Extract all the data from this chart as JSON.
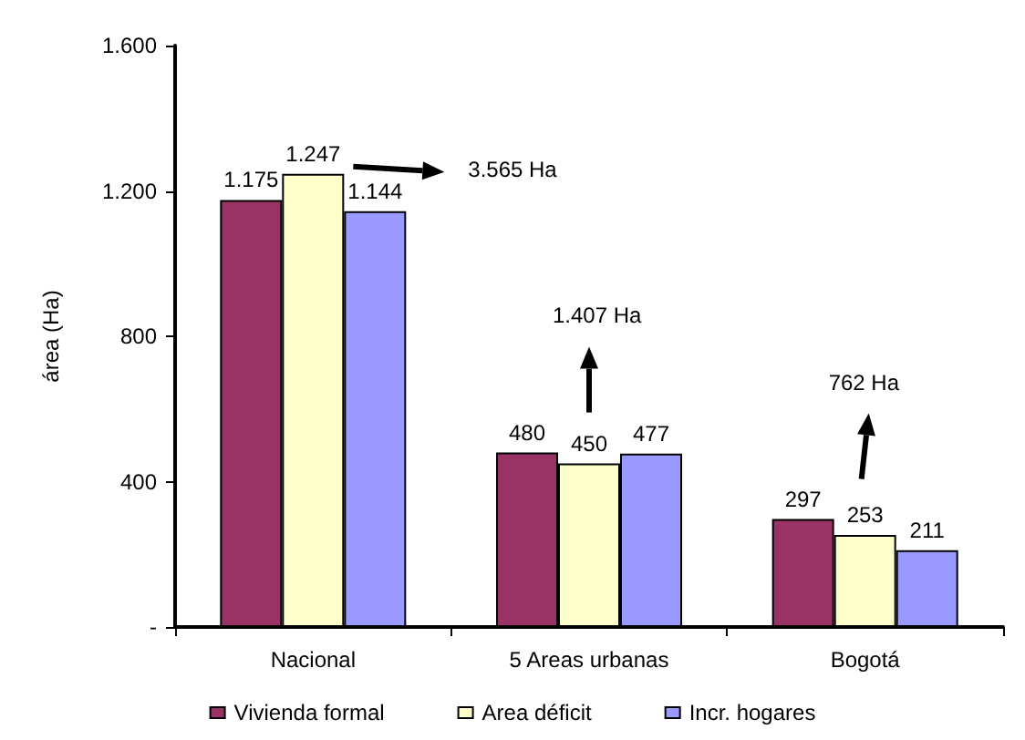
{
  "chart_data": {
    "type": "bar",
    "ylabel": "área (Ha)",
    "categories": [
      "Nacional",
      "5 Areas urbanas",
      "Bogotá"
    ],
    "series": [
      {
        "name": "Vivienda formal",
        "color": "#993366",
        "values": [
          1175,
          480,
          297
        ],
        "value_labels": [
          "1.175",
          "480",
          "297"
        ]
      },
      {
        "name": "Area déficit",
        "color": "#ffffcc",
        "values": [
          1247,
          450,
          253
        ],
        "value_labels": [
          "1.247",
          "450",
          "253"
        ]
      },
      {
        "name": "Incr. hogares",
        "color": "#9999ff",
        "values": [
          1144,
          477,
          211
        ],
        "value_labels": [
          "1.144",
          "477",
          "211"
        ]
      }
    ],
    "ylim": [
      0,
      1600
    ],
    "yticks": [
      {
        "value": 0,
        "label": "-"
      },
      400,
      800,
      {
        "value": 1200,
        "label": "1.200"
      },
      {
        "value": 1600,
        "label": "1.600"
      }
    ],
    "grid": false,
    "legend": "bottom",
    "annotations": [
      "3.565 Ha",
      "1.407 Ha",
      "762 Ha"
    ]
  }
}
